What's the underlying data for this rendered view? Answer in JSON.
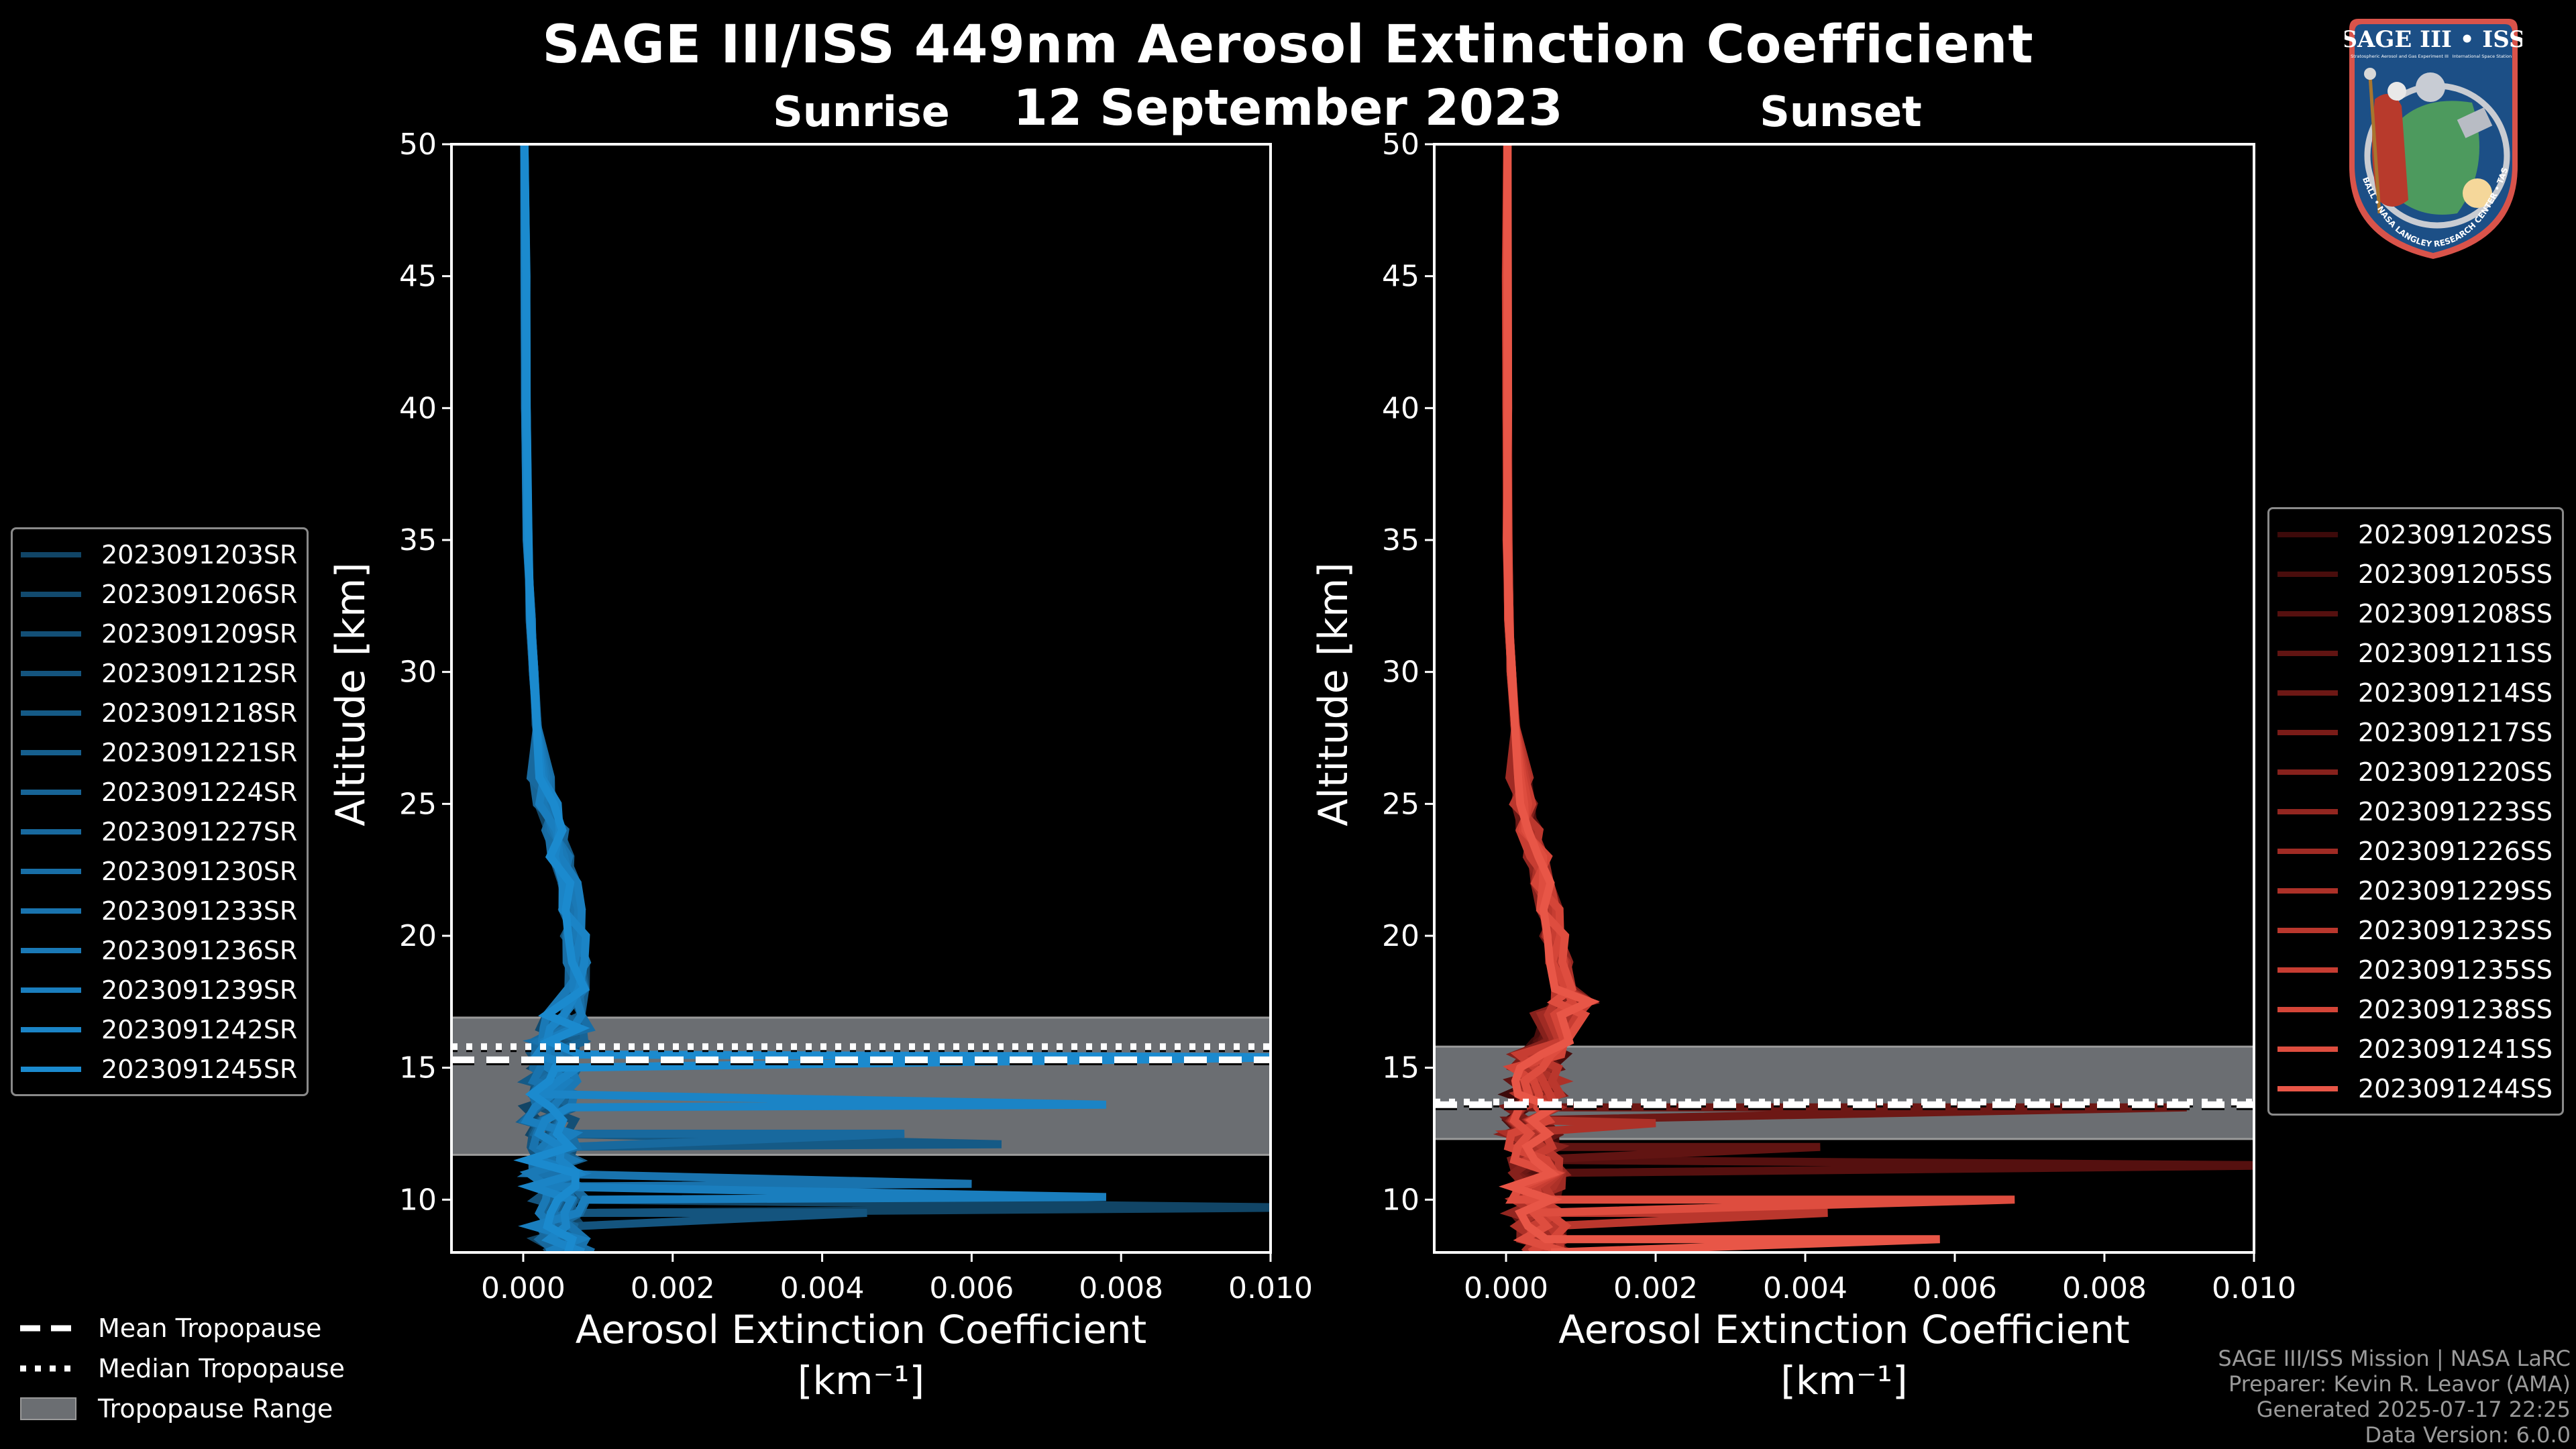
{
  "header": {
    "title": "SAGE III/ISS 449nm Aerosol Extinction Coefficient",
    "subtitle": "12 September 2023"
  },
  "logo": {
    "title": "SAGE III • ISS",
    "subtitle_left": "Stratospheric Aerosol and Gas Experiment III",
    "subtitle_right": "International Space Station",
    "ring_text": "BALL • NASA LANGLEY RESEARCH CENTER • TAS-I • ESA"
  },
  "tropopause_legend": {
    "mean": "Mean Tropopause",
    "median": "Median Tropopause",
    "range": "Tropopause Range"
  },
  "credits": {
    "line1": "SAGE III/ISS Mission | NASA LaRC",
    "line2": "Preparer: Kevin R. Leavor (AMA)",
    "line3": "Generated 2025-07-17 22:25",
    "line4": "Data Version: 6.0.0"
  },
  "colors": {
    "background": "#000000",
    "tropopause_band": "#6b6e72",
    "sunrise_dark": "#0d3f5f",
    "sunrise_light": "#1a8fd0",
    "sunset_dark": "#3a0808",
    "sunset_light": "#e8584a"
  },
  "chart_data": [
    {
      "type": "line",
      "title": "Sunrise",
      "xlabel": "Aerosol Extinction Coefficient",
      "xlabel_units": "[km⁻¹]",
      "ylabel": "Altitude [km]",
      "xlim": [
        -0.00096,
        0.01
      ],
      "ylim": [
        8,
        50
      ],
      "xticks": [
        "0.000",
        "0.002",
        "0.004",
        "0.006",
        "0.008",
        "0.010"
      ],
      "xtick_values": [
        0,
        0.002,
        0.004,
        0.006,
        0.008,
        0.01
      ],
      "yticks": [
        10,
        15,
        20,
        25,
        30,
        35,
        40,
        45,
        50
      ],
      "grid": false,
      "legend_position": "left",
      "tropopause": {
        "range": [
          11.7,
          16.9
        ],
        "mean": 15.3,
        "median": 15.8
      },
      "series": [
        {
          "name": "2023091203SR",
          "color": "#114566"
        },
        {
          "name": "2023091206SR",
          "color": "#124a6e"
        },
        {
          "name": "2023091209SR",
          "color": "#134f76"
        },
        {
          "name": "2023091212SR",
          "color": "#14547e"
        },
        {
          "name": "2023091218SR",
          "color": "#155a86"
        },
        {
          "name": "2023091221SR",
          "color": "#165f8e"
        },
        {
          "name": "2023091224SR",
          "color": "#176496"
        },
        {
          "name": "2023091227SR",
          "color": "#18699e"
        },
        {
          "name": "2023091230SR",
          "color": "#186ea6"
        },
        {
          "name": "2023091233SR",
          "color": "#1973ae"
        },
        {
          "name": "2023091236SR",
          "color": "#1a79b6"
        },
        {
          "name": "2023091239SR",
          "color": "#1a7ebe"
        },
        {
          "name": "2023091242SR",
          "color": "#1b84c6"
        },
        {
          "name": "2023091245SR",
          "color": "#1b8ace"
        }
      ],
      "profile_base": {
        "altitude": [
          50,
          45,
          40,
          35,
          32,
          30,
          28,
          26,
          25,
          24,
          23,
          22,
          21,
          20,
          19,
          18,
          17,
          16.5,
          16,
          15.5,
          15,
          14.5,
          14,
          13.5,
          13,
          12.5,
          12,
          11.5,
          11,
          10.5,
          10,
          9.5,
          9,
          8.5,
          8
        ],
        "extinction": [
          2e-05,
          3e-05,
          4e-05,
          6e-05,
          0.0001,
          0.00014,
          0.00018,
          0.00025,
          0.00032,
          0.00042,
          0.0005,
          0.00058,
          0.00065,
          0.0007,
          0.0007,
          0.00072,
          0.00062,
          0.00055,
          0.0005,
          0.00045,
          0.0004,
          0.00038,
          0.00036,
          0.00035,
          0.00034,
          0.00036,
          0.00038,
          0.0004,
          0.00042,
          0.00045,
          0.0005,
          0.00048,
          0.00045,
          0.0005,
          0.0006
        ]
      },
      "spikes": [
        {
          "series": "2023091245SR",
          "altitude": 15.4,
          "extinction": 0.0105
        },
        {
          "series": "2023091242SR",
          "altitude": 13.6,
          "extinction": 0.0078
        },
        {
          "series": "2023091227SR",
          "altitude": 12.5,
          "extinction": 0.0051
        },
        {
          "series": "2023091218SR",
          "altitude": 12.1,
          "extinction": 0.0064
        },
        {
          "series": "2023091239SR",
          "altitude": 10.1,
          "extinction": 0.0078
        },
        {
          "series": "2023091203SR",
          "altitude": 9.7,
          "extinction": 0.0105
        },
        {
          "series": "2023091233SR",
          "altitude": 10.6,
          "extinction": 0.006
        },
        {
          "series": "2023091212SR",
          "altitude": 9.5,
          "extinction": 0.0046
        }
      ]
    },
    {
      "type": "line",
      "title": "Sunset",
      "xlabel": "Aerosol Extinction Coefficient",
      "xlabel_units": "[km⁻¹]",
      "ylabel": "Altitude [km]",
      "xlim": [
        -0.00096,
        0.01
      ],
      "ylim": [
        8,
        50
      ],
      "xticks": [
        "0.000",
        "0.002",
        "0.004",
        "0.006",
        "0.008",
        "0.010"
      ],
      "xtick_values": [
        0,
        0.002,
        0.004,
        0.006,
        0.008,
        0.01
      ],
      "yticks": [
        10,
        15,
        20,
        25,
        30,
        35,
        40,
        45,
        50
      ],
      "grid": false,
      "legend_position": "right",
      "tropopause": {
        "range": [
          12.3,
          15.8
        ],
        "mean": 13.6,
        "median": 13.7
      },
      "series": [
        {
          "name": "2023091202SS",
          "color": "#3d0a0a"
        },
        {
          "name": "2023091205SS",
          "color": "#490d0c"
        },
        {
          "name": "2023091208SS",
          "color": "#55100f"
        },
        {
          "name": "2023091211SS",
          "color": "#611412"
        },
        {
          "name": "2023091214SS",
          "color": "#6d1815"
        },
        {
          "name": "2023091217SS",
          "color": "#7a1c18"
        },
        {
          "name": "2023091220SS",
          "color": "#86211c"
        },
        {
          "name": "2023091223SS",
          "color": "#932620"
        },
        {
          "name": "2023091226SS",
          "color": "#a02b24"
        },
        {
          "name": "2023091229SS",
          "color": "#ad3128"
        },
        {
          "name": "2023091232SS",
          "color": "#ba372d"
        },
        {
          "name": "2023091235SS",
          "color": "#c73d32"
        },
        {
          "name": "2023091238SS",
          "color": "#d44538"
        },
        {
          "name": "2023091241SS",
          "color": "#de4d3f"
        },
        {
          "name": "2023091244SS",
          "color": "#e85647"
        }
      ],
      "profile_base": {
        "altitude": [
          50,
          45,
          40,
          35,
          32,
          30,
          28,
          26,
          25,
          24,
          23,
          22,
          21,
          20,
          19,
          18,
          17.5,
          17,
          16,
          15.5,
          15,
          14.5,
          14,
          13.5,
          13,
          12.5,
          12,
          11.5,
          11,
          10.5,
          10,
          9.5,
          9,
          8.5,
          8
        ],
        "extinction": [
          1e-05,
          1e-05,
          2e-05,
          2e-05,
          4e-05,
          7e-05,
          0.00012,
          0.00018,
          0.00024,
          0.00032,
          0.00042,
          0.0005,
          0.00058,
          0.00064,
          0.0007,
          0.00075,
          0.00085,
          0.0007,
          0.00055,
          0.00045,
          0.0004,
          0.0004,
          0.00038,
          0.00036,
          0.00034,
          0.00035,
          0.00038,
          0.0004,
          0.00045,
          0.00042,
          0.0004,
          0.0004,
          0.00045,
          0.0005,
          0.00055
        ]
      },
      "spikes": [
        {
          "series": "2023091214SS",
          "altitude": 13.5,
          "extinction": 0.0091
        },
        {
          "series": "2023091208SS",
          "altitude": 11.3,
          "extinction": 0.0105
        },
        {
          "series": "2023091211SS",
          "altitude": 12.0,
          "extinction": 0.0042
        },
        {
          "series": "2023091241SS",
          "altitude": 10.0,
          "extinction": 0.0068
        },
        {
          "series": "2023091244SS",
          "altitude": 8.5,
          "extinction": 0.0058
        },
        {
          "series": "2023091232SS",
          "altitude": 9.5,
          "extinction": 0.0043
        },
        {
          "series": "2023091229SS",
          "altitude": 12.9,
          "extinction": 0.002
        }
      ]
    }
  ]
}
